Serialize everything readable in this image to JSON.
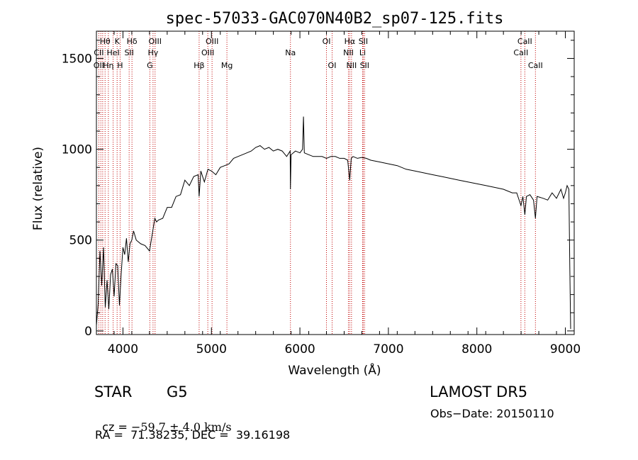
{
  "chart_data": {
    "type": "line",
    "title": "spec-57033-GAC070N40B2_sp07-125.fits",
    "xlabel": "Wavelength (Å)",
    "ylabel": "Flux (relative)",
    "xlim": [
      3700,
      9100
    ],
    "ylim": [
      -20,
      1650
    ],
    "xticks": [
      4000,
      5000,
      6000,
      7000,
      8000,
      9000
    ],
    "yticks": [
      0,
      500,
      1000,
      1500
    ],
    "grid": false,
    "series": [
      {
        "x": [
          3700,
          3720,
          3740,
          3760,
          3780,
          3800,
          3820,
          3840,
          3860,
          3880,
          3900,
          3920,
          3940,
          3960,
          3980,
          4000,
          4020,
          4040,
          4060,
          4080,
          4100,
          4120,
          4150,
          4200,
          4250,
          4300,
          4340,
          4360,
          4380,
          4400,
          4450,
          4500,
          4550,
          4600,
          4650,
          4700,
          4750,
          4800,
          4850,
          4861,
          4880,
          4920,
          4960,
          5000,
          5050,
          5100,
          5150,
          5200,
          5250,
          5300,
          5350,
          5400,
          5450,
          5500,
          5550,
          5600,
          5650,
          5700,
          5750,
          5800,
          5850,
          5890,
          5893,
          5900,
          5950,
          6000,
          6030,
          6040,
          6050,
          6100,
          6150,
          6200,
          6250,
          6300,
          6350,
          6400,
          6450,
          6500,
          6540,
          6563,
          6580,
          6600,
          6650,
          6700,
          6750,
          6800,
          6900,
          7000,
          7100,
          7200,
          7300,
          7400,
          7500,
          7600,
          7700,
          7800,
          7900,
          8000,
          8100,
          8200,
          8300,
          8400,
          8450,
          8498,
          8520,
          8542,
          8560,
          8600,
          8640,
          8662,
          8680,
          8750,
          8800,
          8850,
          8900,
          8950,
          8980,
          9000,
          9020,
          9040,
          9050,
          9060
        ],
        "values": [
          30,
          150,
          440,
          250,
          460,
          130,
          280,
          120,
          310,
          340,
          190,
          370,
          360,
          140,
          310,
          460,
          420,
          510,
          380,
          480,
          500,
          550,
          500,
          480,
          470,
          440,
          560,
          620,
          600,
          610,
          620,
          680,
          680,
          740,
          750,
          830,
          800,
          850,
          860,
          740,
          880,
          820,
          890,
          880,
          860,
          900,
          910,
          920,
          950,
          960,
          970,
          980,
          990,
          1010,
          1020,
          1000,
          1010,
          990,
          1000,
          990,
          960,
          990,
          780,
          970,
          990,
          980,
          1000,
          1180,
          980,
          970,
          960,
          960,
          960,
          950,
          960,
          960,
          950,
          950,
          940,
          830,
          950,
          960,
          950,
          955,
          950,
          940,
          930,
          920,
          910,
          890,
          880,
          870,
          860,
          850,
          840,
          830,
          820,
          810,
          800,
          790,
          780,
          760,
          760,
          690,
          740,
          640,
          740,
          750,
          720,
          620,
          740,
          730,
          720,
          760,
          730,
          780,
          730,
          760,
          800,
          780,
          350,
          10
        ]
      }
    ],
    "line_labels": [
      {
        "text": "Hθ",
        "x": 3798,
        "row": 1
      },
      {
        "text": "K",
        "x": 3934,
        "row": 1
      },
      {
        "text": "Hδ",
        "x": 4102,
        "row": 1
      },
      {
        "text": "OIII",
        "x": 4363,
        "row": 1
      },
      {
        "text": "OIII",
        "x": 5007,
        "row": 1
      },
      {
        "text": "OI",
        "x": 6300,
        "row": 1
      },
      {
        "text": "Hα",
        "x": 6563,
        "row": 1
      },
      {
        "text": "SII",
        "x": 6716,
        "row": 1
      },
      {
        "text": "CaII",
        "x": 8542,
        "row": 1
      },
      {
        "text": "CII",
        "x": 3727,
        "row": 2
      },
      {
        "text": "HeI",
        "x": 3889,
        "row": 2
      },
      {
        "text": "SII",
        "x": 4070,
        "row": 2
      },
      {
        "text": "Hγ",
        "x": 4340,
        "row": 2
      },
      {
        "text": "OIII",
        "x": 4959,
        "row": 2
      },
      {
        "text": "Na",
        "x": 5893,
        "row": 2
      },
      {
        "text": "NII",
        "x": 6548,
        "row": 2
      },
      {
        "text": "Li",
        "x": 6708,
        "row": 2
      },
      {
        "text": "CaII",
        "x": 8498,
        "row": 2
      },
      {
        "text": "OII",
        "x": 3727,
        "row": 3
      },
      {
        "text": "Hη",
        "x": 3835,
        "row": 3
      },
      {
        "text": "H",
        "x": 3968,
        "row": 3
      },
      {
        "text": "G",
        "x": 4304,
        "row": 3
      },
      {
        "text": "Hβ",
        "x": 4861,
        "row": 3
      },
      {
        "text": "Mg",
        "x": 5175,
        "row": 3
      },
      {
        "text": "OI",
        "x": 6364,
        "row": 3
      },
      {
        "text": "NII",
        "x": 6583,
        "row": 3
      },
      {
        "text": "SII",
        "x": 6731,
        "row": 3
      },
      {
        "text": "CaII",
        "x": 8662,
        "row": 3
      }
    ],
    "line_marks": [
      3727,
      3750,
      3771,
      3798,
      3835,
      3889,
      3934,
      3968,
      4070,
      4102,
      4304,
      4340,
      4363,
      4861,
      4959,
      5007,
      5175,
      5893,
      6300,
      6364,
      6548,
      6563,
      6583,
      6708,
      6716,
      6731,
      8498,
      8542,
      8662
    ]
  },
  "info": {
    "object_class": "STAR",
    "subclass": "G5",
    "survey": "LAMOST DR5",
    "cz_prefix": "cz = ",
    "cz_value": "−59.7 ± 4.0 km/s",
    "obs_date": "Obs−Date: 20150110",
    "coords": "RA =  71.38235, DEC =  39.16198"
  }
}
